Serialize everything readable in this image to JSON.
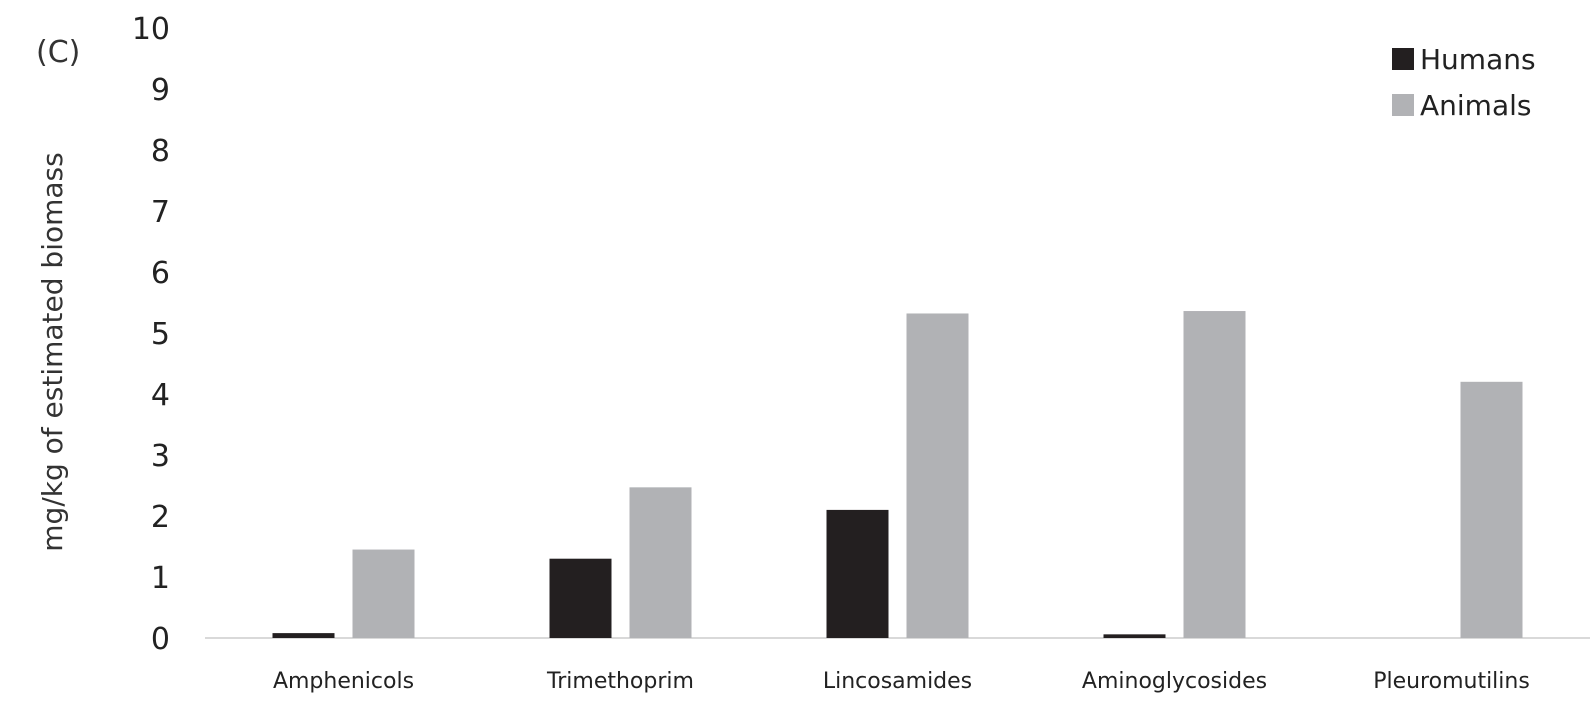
{
  "chart_data": {
    "type": "bar",
    "panel_label": "(C)",
    "ylabel": "mg/kg of estimated biomass",
    "xlabel": "",
    "ylim": [
      0,
      10
    ],
    "yticks": [
      "0",
      "1",
      "2",
      "3",
      "4",
      "5",
      "6",
      "7",
      "8",
      "9",
      "10"
    ],
    "categories": [
      "Amphenicols",
      "Trimethoprim",
      "Lincosamides",
      "Aminoglycosides",
      "Pleuromutilins"
    ],
    "series": [
      {
        "name": "Humans",
        "color": "#231f20",
        "values": [
          0.08,
          1.3,
          2.1,
          0.06,
          0
        ]
      },
      {
        "name": "Animals",
        "color": "#b1b2b5",
        "values": [
          1.45,
          2.47,
          5.32,
          5.36,
          4.2
        ]
      }
    ],
    "grid": false,
    "legend_position": "top-right"
  }
}
